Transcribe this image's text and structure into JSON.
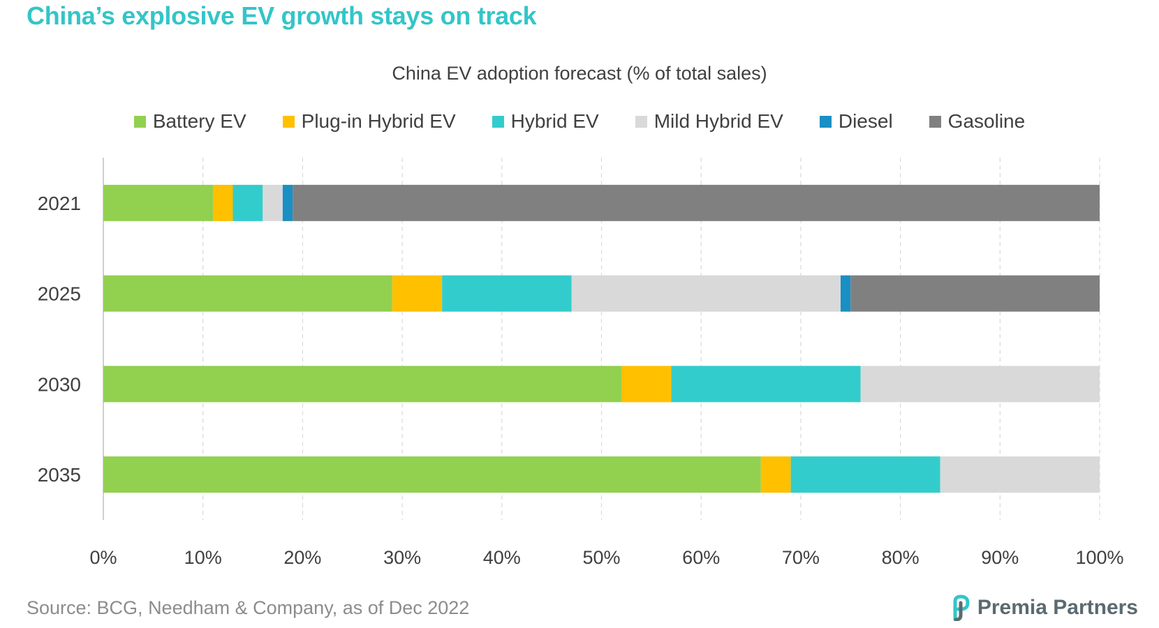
{
  "headline": "China’s explosive EV growth stays on track",
  "source": "Source: BCG, Needham & Company, as of Dec 2022",
  "brand": {
    "name": "Premia Partners"
  },
  "colors": {
    "headline": "#33c5c9",
    "battery_ev": "#92d050",
    "plugin_hybrid_ev": "#ffc000",
    "hybrid_ev": "#33cccc",
    "mild_hybrid_ev": "#d9d9d9",
    "diesel": "#1a8fc4",
    "gasoline": "#808080"
  },
  "chart_data": {
    "type": "bar",
    "orientation": "horizontal",
    "stacked": true,
    "title": "China EV adoption forecast (% of total sales)",
    "categories": [
      "2021",
      "2025",
      "2030",
      "2035"
    ],
    "series": [
      {
        "name": "Battery EV",
        "color": "#92d050",
        "values": [
          11,
          29,
          52,
          66
        ]
      },
      {
        "name": "Plug-in Hybrid EV",
        "color": "#ffc000",
        "values": [
          2,
          5,
          5,
          3
        ]
      },
      {
        "name": "Hybrid EV",
        "color": "#33cccc",
        "values": [
          3,
          13,
          19,
          15
        ]
      },
      {
        "name": "Mild Hybrid EV",
        "color": "#d9d9d9",
        "values": [
          2,
          27,
          24,
          16
        ]
      },
      {
        "name": "Diesel",
        "color": "#1a8fc4",
        "values": [
          1,
          1,
          0,
          0
        ]
      },
      {
        "name": "Gasoline",
        "color": "#808080",
        "values": [
          81,
          25,
          0,
          0
        ]
      }
    ],
    "x_ticks": [
      "0%",
      "10%",
      "20%",
      "30%",
      "40%",
      "50%",
      "60%",
      "70%",
      "80%",
      "90%",
      "100%"
    ],
    "xlim": [
      0,
      100
    ],
    "grid": "vertical dashed",
    "legend_position": "top"
  }
}
